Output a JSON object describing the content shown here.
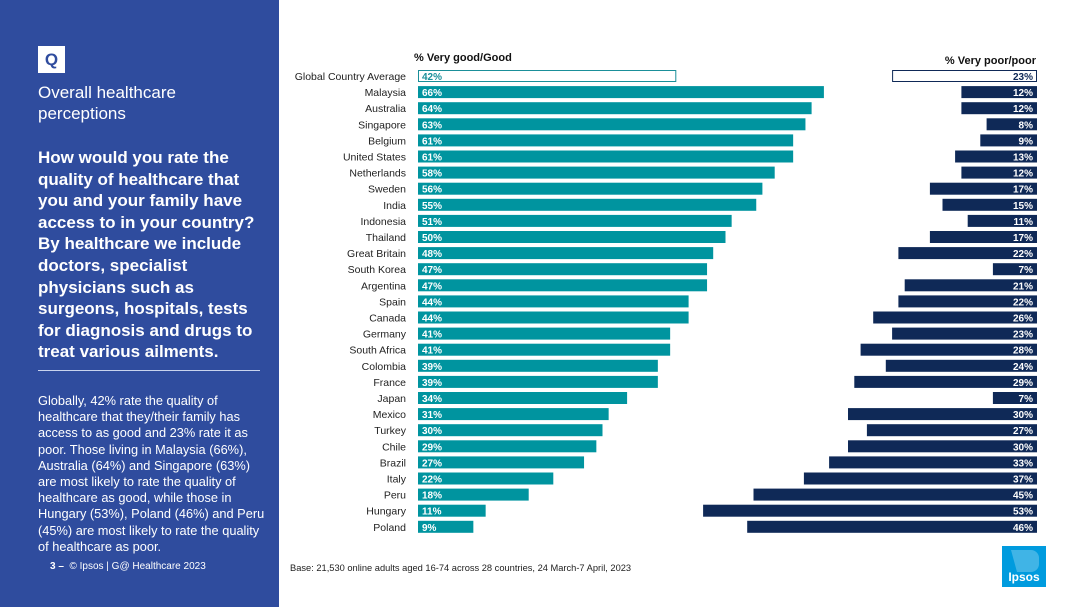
{
  "sidebar": {
    "badge": "Q",
    "section_title": "Overall healthcare perceptions",
    "question": "How would you rate the quality of healthcare that you and your family have access to in your country? By healthcare we include doctors, specialist physicians such as surgeons, hospitals, tests for diagnosis and drugs to treat various ailments.",
    "summary": "Globally, 42% rate the quality of healthcare that they/their family has access to as good and 23% rate it as poor. Those living in Malaysia (66%), Australia (64%) and Singapore (63%) are most likely to rate the quality of healthcare as good, while those in Hungary (53%), Poland (46%) and Peru (45%) are most likely to rate the quality of healthcare as poor."
  },
  "footer": {
    "page_prefix": "3 –",
    "source": "© Ipsos | G@ Healthcare 2023",
    "base_note": "Base: 21,530 online adults aged 16-74 across 28 countries, 24 March-7 April, 2023",
    "logo_text": "Ipsos"
  },
  "colors": {
    "sidebar_bg": "#2f4c9e",
    "good_bar": "#00949f",
    "poor_bar": "#0f2957",
    "average_outline_good": "#1a8f99",
    "average_outline_poor": "#0f2957",
    "logo_blue": "#009bde"
  },
  "chart_data": {
    "type": "bar",
    "orientation": "horizontal-diverging",
    "unit": "%",
    "series": [
      {
        "name": "% Very good/Good",
        "values": [
          42,
          66,
          64,
          63,
          61,
          61,
          58,
          56,
          55,
          51,
          50,
          48,
          47,
          47,
          44,
          44,
          41,
          41,
          39,
          39,
          34,
          31,
          30,
          29,
          27,
          22,
          18,
          11,
          9
        ]
      },
      {
        "name": "% Very poor/poor",
        "values": [
          23,
          12,
          12,
          8,
          9,
          13,
          12,
          17,
          15,
          11,
          17,
          22,
          7,
          21,
          22,
          26,
          23,
          28,
          24,
          29,
          7,
          30,
          27,
          30,
          33,
          37,
          45,
          53,
          46
        ]
      }
    ],
    "categories": [
      "Global Country Average",
      "Malaysia",
      "Australia",
      "Singapore",
      "Belgium",
      "United States",
      "Netherlands",
      "Sweden",
      "India",
      "Indonesia",
      "Thailand",
      "Great Britain",
      "South Korea",
      "Argentina",
      "Spain",
      "Canada",
      "Germany",
      "South Africa",
      "Colombia",
      "France",
      "Japan",
      "Mexico",
      "Turkey",
      "Chile",
      "Brazil",
      "Italy",
      "Peru",
      "Hungary",
      "Poland"
    ],
    "highlight_category": "Global Country Average"
  }
}
